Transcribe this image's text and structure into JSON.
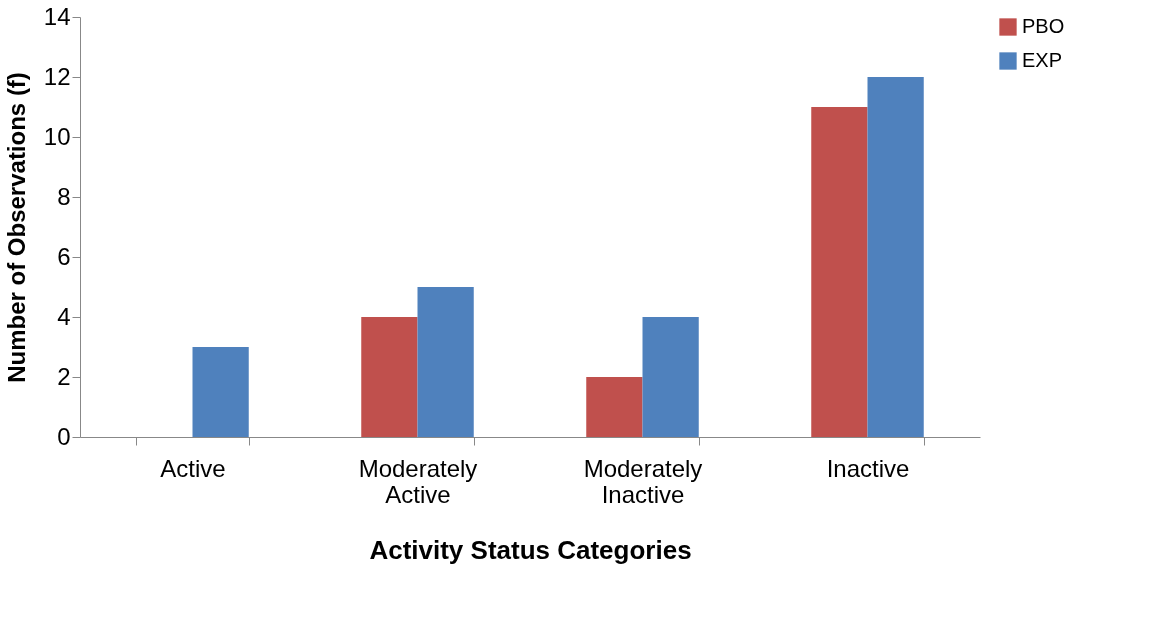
{
  "chart_data": {
    "type": "bar",
    "xlabel": "Activity Status Categories",
    "ylabel": "Number of Observations (f)",
    "categories": [
      "Active",
      "Moderately Active",
      "Moderately Inactive",
      "Inactive"
    ],
    "series": [
      {
        "name": "PBO",
        "color": "#c0504d",
        "values": [
          0,
          4,
          2,
          11
        ]
      },
      {
        "name": "EXP",
        "color": "#4f81bd",
        "values": [
          3,
          5,
          4,
          12
        ]
      }
    ],
    "ylim": [
      0,
      14
    ],
    "yticks": [
      0,
      2,
      4,
      6,
      8,
      10,
      12,
      14
    ],
    "grid": false,
    "legend": "top right"
  }
}
